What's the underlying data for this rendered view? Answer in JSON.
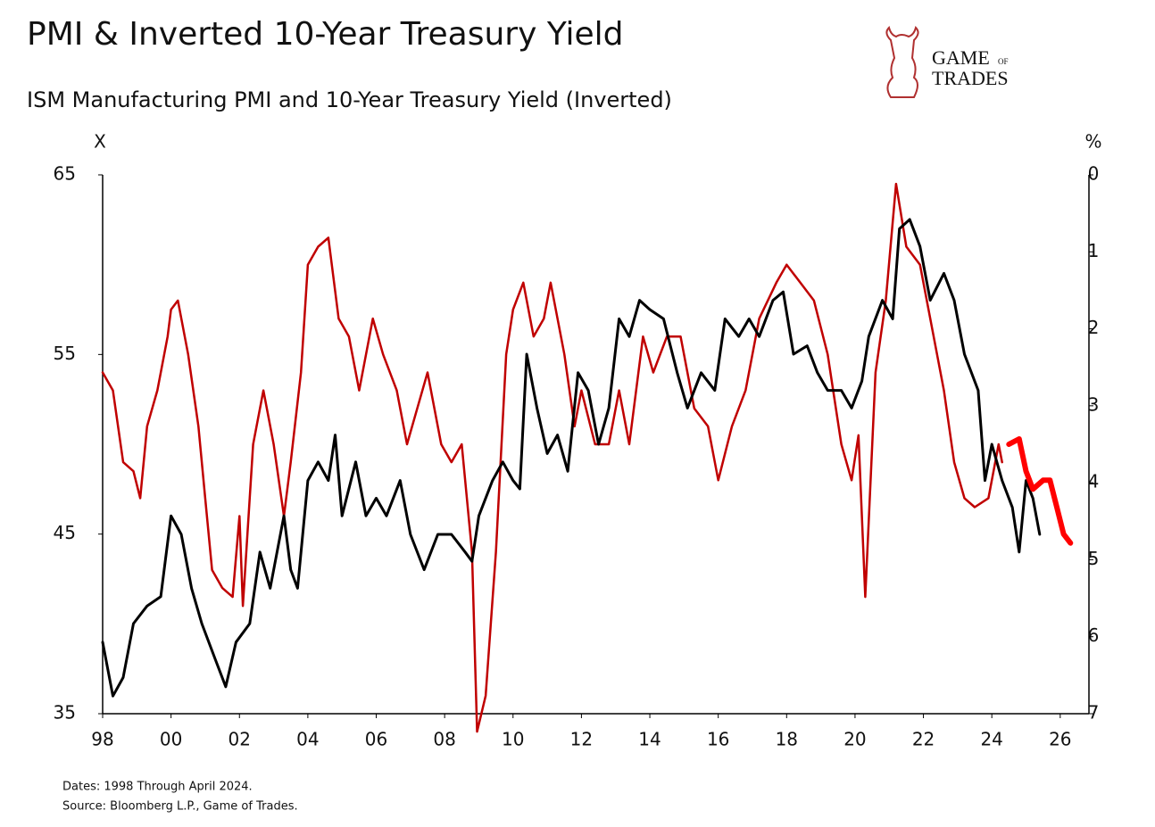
{
  "chart_data": {
    "type": "line",
    "title": "PMI & Inverted 10-Year Treasury Yield",
    "subtitle": "ISM Manufacturing PMI and 10-Year Treasury Yield (Inverted)",
    "y_label": "X",
    "y2_label": "%",
    "notes": [
      "Dates: 1998 Through April 2024.",
      "Source: Bloomberg L.P., Game of Trades."
    ],
    "logo": [
      "GAME",
      "OF",
      "TRADES"
    ],
    "xlim": [
      1998,
      2026.84
    ],
    "xticks": [
      {
        "value": 1998,
        "label": "98"
      },
      {
        "value": 2000,
        "label": "00"
      },
      {
        "value": 2002,
        "label": "02"
      },
      {
        "value": 2004,
        "label": "04"
      },
      {
        "value": 2006,
        "label": "06"
      },
      {
        "value": 2008,
        "label": "08"
      },
      {
        "value": 2010,
        "label": "10"
      },
      {
        "value": 2012,
        "label": "12"
      },
      {
        "value": 2014,
        "label": "14"
      },
      {
        "value": 2016,
        "label": "16"
      },
      {
        "value": 2018,
        "label": "18"
      },
      {
        "value": 2020,
        "label": "20"
      },
      {
        "value": 2022,
        "label": "22"
      },
      {
        "value": 2024,
        "label": "24"
      },
      {
        "value": 2026,
        "label": "26"
      }
    ],
    "ylim": [
      35,
      65
    ],
    "yticks": [
      35,
      45,
      55,
      65
    ],
    "y2lim": [
      7,
      0
    ],
    "y2ticks": [
      0,
      1,
      2,
      3,
      4,
      5,
      6,
      7
    ],
    "series": [
      {
        "color": "#c00000",
        "width": 2.5,
        "x": [
          1998.0,
          1998.3,
          1998.6,
          1998.9,
          1999.1,
          1999.3,
          1999.6,
          1999.9,
          2000.0,
          2000.2,
          2000.5,
          2000.8,
          2001.0,
          2001.2,
          2001.5,
          2001.8,
          2002.0,
          2002.1,
          2002.4,
          2002.7,
          2003.0,
          2003.3,
          2003.5,
          2003.8,
          2004.0,
          2004.3,
          2004.6,
          2004.9,
          2005.2,
          2005.5,
          2005.9,
          2006.2,
          2006.6,
          2006.9,
          2007.2,
          2007.5,
          2007.9,
          2008.2,
          2008.5,
          2008.8,
          2008.95,
          2009.2,
          2009.5,
          2009.8,
          2010.0,
          2010.3,
          2010.6,
          2010.9,
          2011.1,
          2011.5,
          2011.8,
          2012.0,
          2012.4,
          2012.8,
          2013.1,
          2013.4,
          2013.8,
          2014.1,
          2014.5,
          2014.9,
          2015.3,
          2015.7,
          2016.0,
          2016.4,
          2016.8,
          2017.2,
          2017.7,
          2018.0,
          2018.4,
          2018.8,
          2019.2,
          2019.6,
          2019.9,
          2020.1,
          2020.3,
          2020.6,
          2020.9,
          2021.2,
          2021.5,
          2021.9,
          2022.2,
          2022.6,
          2022.9,
          2023.2,
          2023.5,
          2023.9,
          2024.2,
          2024.3
        ],
        "values": [
          54,
          53,
          49,
          48.5,
          47,
          51,
          53,
          56,
          57.5,
          58,
          55,
          51,
          47,
          43,
          42,
          41.5,
          46,
          41,
          50,
          53,
          50,
          46,
          49,
          54,
          60,
          61,
          61.5,
          57,
          56,
          53,
          57,
          55,
          53,
          50,
          52,
          54,
          50,
          49,
          50,
          44,
          34,
          36,
          44,
          55,
          57.5,
          59,
          56,
          57,
          59,
          55,
          51,
          53,
          50,
          50,
          53,
          50,
          56,
          54,
          56,
          56,
          52,
          51,
          48,
          51,
          53,
          57,
          59,
          60,
          59,
          58,
          55,
          50,
          48,
          50.5,
          41.5,
          54,
          58,
          64.5,
          61,
          60,
          57,
          53,
          49,
          47,
          46.5,
          47,
          50,
          49
        ]
      },
      {
        "color": "#000000",
        "width": 3,
        "axis": "y2",
        "x": [
          1998.0,
          1998.3,
          1998.6,
          1998.9,
          1999.3,
          1999.7,
          2000.0,
          2000.3,
          2000.6,
          2000.9,
          2001.3,
          2001.6,
          2001.9,
          2002.3,
          2002.6,
          2002.9,
          2003.3,
          2003.5,
          2003.7,
          2004.0,
          2004.3,
          2004.6,
          2004.8,
          2005.0,
          2005.4,
          2005.7,
          2006.0,
          2006.3,
          2006.7,
          2007.0,
          2007.4,
          2007.8,
          2008.2,
          2008.6,
          2008.8,
          2009.0,
          2009.4,
          2009.7,
          2010.0,
          2010.2,
          2010.4,
          2010.7,
          2011.0,
          2011.3,
          2011.6,
          2011.9,
          2012.2,
          2012.5,
          2012.8,
          2013.1,
          2013.4,
          2013.7,
          2014.0,
          2014.4,
          2014.8,
          2015.1,
          2015.5,
          2015.9,
          2016.2,
          2016.6,
          2016.9,
          2017.2,
          2017.6,
          2017.9,
          2018.2,
          2018.6,
          2018.9,
          2019.2,
          2019.6,
          2019.9,
          2020.2,
          2020.4,
          2020.8,
          2021.1,
          2021.3,
          2021.6,
          2021.9,
          2022.2,
          2022.6,
          2022.9,
          2023.2,
          2023.6,
          2023.8,
          2024.0,
          2024.3,
          2024.6,
          2024.8,
          2025.0,
          2025.2,
          2025.4
        ],
        "values": [
          6.07,
          6.77,
          6.53,
          5.83,
          5.6,
          5.48,
          4.43,
          4.67,
          5.37,
          5.83,
          6.3,
          6.65,
          6.07,
          5.83,
          4.9,
          5.37,
          4.43,
          5.13,
          5.37,
          3.97,
          3.73,
          3.97,
          3.38,
          4.43,
          3.73,
          4.43,
          4.2,
          4.43,
          3.97,
          4.67,
          5.13,
          4.67,
          4.67,
          4.9,
          5.02,
          4.43,
          3.97,
          3.73,
          3.97,
          4.08,
          2.33,
          3.03,
          3.62,
          3.38,
          3.85,
          2.57,
          2.8,
          3.5,
          3.03,
          1.87,
          2.1,
          1.63,
          1.75,
          1.87,
          2.57,
          3.03,
          2.57,
          2.8,
          1.87,
          2.1,
          1.87,
          2.1,
          1.63,
          1.52,
          2.33,
          2.22,
          2.57,
          2.8,
          2.8,
          3.03,
          2.68,
          2.1,
          1.63,
          1.87,
          0.7,
          0.58,
          0.93,
          1.63,
          1.28,
          1.63,
          2.33,
          2.8,
          3.97,
          3.5,
          3.97,
          4.32,
          4.9,
          3.97,
          4.2,
          4.67
        ]
      },
      {
        "color": "#ff0000",
        "width": 6,
        "x": [
          2024.5,
          2024.8,
          2025.0,
          2025.2,
          2025.5,
          2025.7,
          2025.9,
          2026.1,
          2026.3
        ],
        "values": [
          50,
          50.3,
          48.5,
          47.5,
          48,
          48,
          46.5,
          45,
          44.5
        ]
      }
    ]
  }
}
